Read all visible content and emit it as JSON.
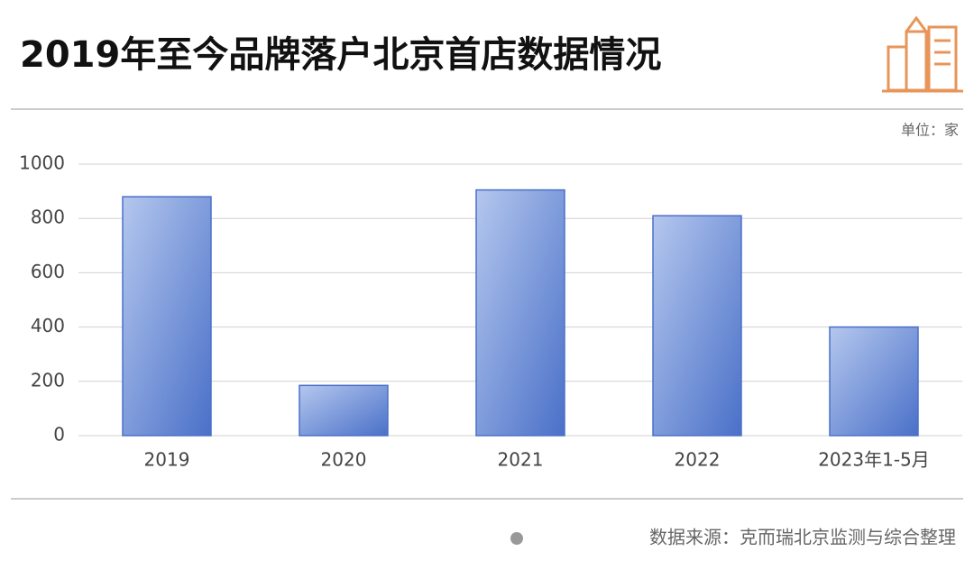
{
  "chart_data": {
    "type": "bar",
    "title": "2019年至今品牌落户北京首店数据情况",
    "unit": "单位：家",
    "source": "数据来源：克而瑞北京监测与综合整理",
    "categories": [
      "2019",
      "2020",
      "2021",
      "2022",
      "2023年1-5月"
    ],
    "values": [
      880,
      185,
      905,
      810,
      400
    ],
    "color": "#4a70c8",
    "ylim": [
      0,
      1000
    ],
    "yticks": [
      0,
      200,
      400,
      600,
      800,
      1000
    ],
    "grid": true
  }
}
